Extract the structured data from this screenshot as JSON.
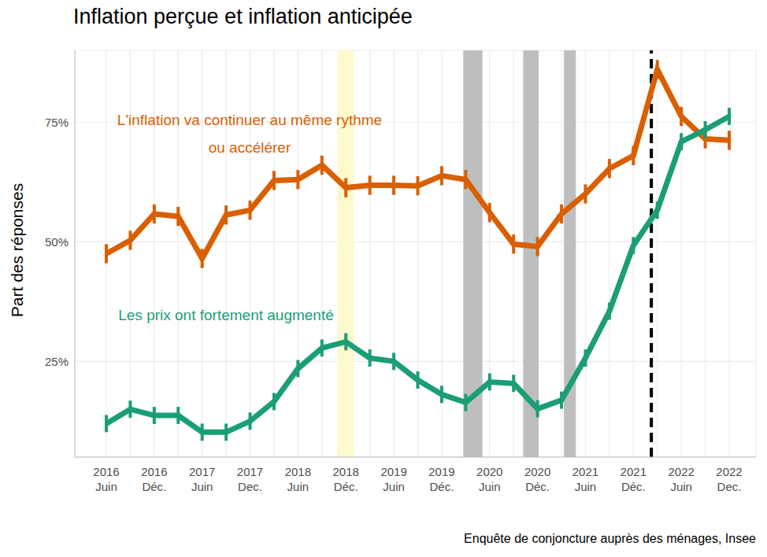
{
  "chart_data": {
    "type": "line",
    "title": "Inflation perçue et inflation anticipée",
    "y_label": "Part des réponses",
    "caption": "Enquête de conjoncture auprès des ménages, Insee",
    "categories": [
      "2016 Juin",
      null,
      "2016 Déc.",
      null,
      "2017 Juin",
      null,
      "2017 Dec.",
      null,
      "2018 Juin",
      null,
      "2018 Déc.",
      null,
      "2019 Juin",
      null,
      "2019 Déc.",
      null,
      "2020 Juin",
      null,
      "2020 Déc.",
      null,
      "2021 Juin",
      null,
      "2021 Déc.",
      null,
      "2022 Juin",
      null,
      "2022 Dec."
    ],
    "series": [
      {
        "name": "L'inflation va continuer au même rythme ou accélérer",
        "color": "#d95f02",
        "values": [
          47.5,
          50.3,
          55.8,
          55.3,
          46.5,
          55.6,
          56.6,
          62.8,
          63,
          66,
          61.3,
          61.8,
          61.8,
          61.7,
          63.8,
          63,
          56.1,
          49.5,
          49,
          55.8,
          60,
          65.3,
          68,
          86,
          76.2,
          71.5,
          71.2
        ],
        "errors": [
          2,
          2,
          2,
          2,
          2,
          2,
          2,
          2,
          2,
          2,
          2,
          2,
          2,
          2,
          2,
          2,
          2,
          2,
          2,
          2,
          2,
          2,
          2,
          2,
          2,
          2,
          2
        ]
      },
      {
        "name": "Les prix ont fortement augmenté",
        "color": "#1b9e77",
        "values": [
          12,
          15,
          13.7,
          13.7,
          10.2,
          10.2,
          12.5,
          16.6,
          23.5,
          27.8,
          29.1,
          25.7,
          25,
          21.1,
          18.1,
          16.4,
          20.7,
          20.4,
          15.1,
          16.9,
          25.7,
          35.5,
          49.2,
          56.6,
          70.9,
          73.4,
          76.2
        ],
        "errors": [
          1.8,
          1.8,
          1.8,
          1.8,
          1.8,
          1.8,
          1.8,
          1.8,
          1.8,
          1.8,
          1.8,
          1.8,
          1.8,
          1.8,
          1.8,
          1.8,
          1.8,
          1.8,
          1.8,
          1.8,
          1.8,
          1.8,
          1.8,
          1.8,
          1.8,
          1.8,
          1.8
        ]
      }
    ],
    "ylim": [
      5,
      90
    ],
    "yticks": [
      {
        "value": 25,
        "label": "25%"
      },
      {
        "value": 50,
        "label": "50%"
      },
      {
        "value": 75,
        "label": "75%"
      }
    ],
    "grid": true,
    "shaded_periods": [
      {
        "from": 9.65,
        "to": 10.35,
        "color": "#fffacd"
      },
      {
        "from": 14.9,
        "to": 15.7,
        "color": "#bebebe"
      },
      {
        "from": 17.4,
        "to": 18.05,
        "color": "#bebebe"
      },
      {
        "from": 19.1,
        "to": 19.6,
        "color": "#bebebe"
      }
    ],
    "vlines": [
      {
        "x": 22.75,
        "color": "#000000",
        "line_style": "dashed"
      }
    ]
  }
}
